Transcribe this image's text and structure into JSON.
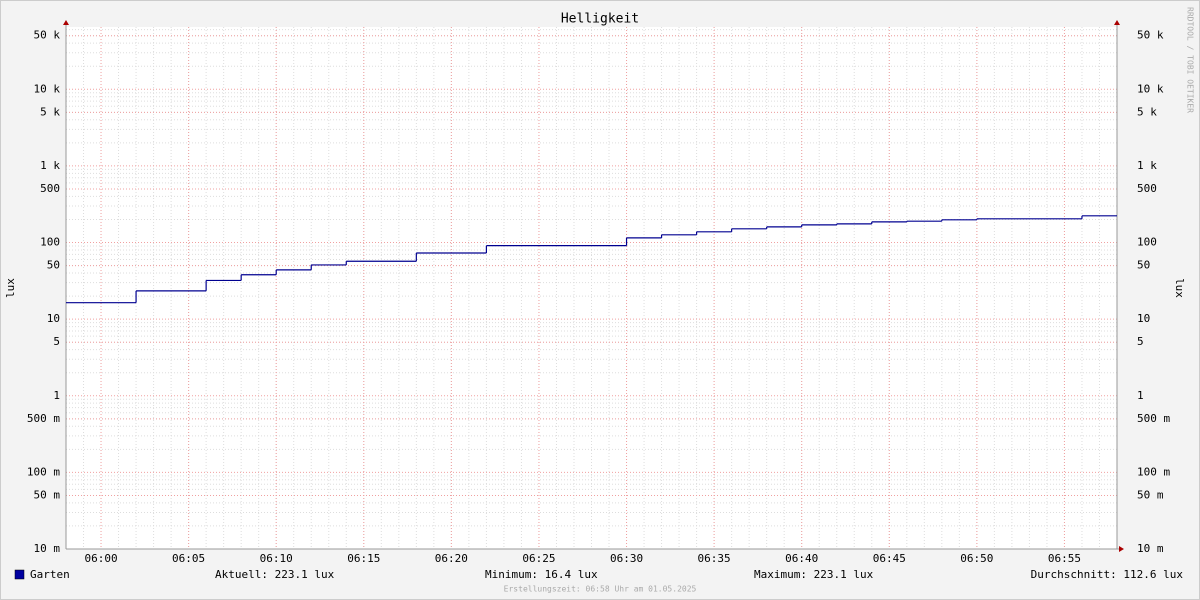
{
  "chart_data": {
    "type": "step",
    "title": "Helligkeit",
    "y_label": "lux",
    "log_scale": true,
    "grid": true,
    "x": [
      "05:58",
      "06:02",
      "06:06",
      "06:08",
      "06:10",
      "06:12",
      "06:14",
      "06:18",
      "06:22",
      "06:30",
      "06:32",
      "06:34",
      "06:36",
      "06:38",
      "06:40",
      "06:42",
      "06:44",
      "06:46",
      "06:48",
      "06:50",
      "06:56"
    ],
    "series": [
      {
        "name": "Garten",
        "color": "#000090",
        "values": [
          16.4,
          23.4,
          32,
          38,
          44,
          51,
          57,
          73,
          91,
          115,
          126,
          138,
          151,
          160,
          170,
          175,
          186,
          190,
          198,
          204,
          223.1
        ]
      }
    ],
    "xlim": [
      "05:58",
      "06:58"
    ],
    "xticks": [
      "06:00",
      "06:05",
      "06:10",
      "06:15",
      "06:20",
      "06:25",
      "06:30",
      "06:35",
      "06:40",
      "06:45",
      "06:50",
      "06:55"
    ],
    "ylim": [
      0.01,
      65000
    ],
    "yticks": [
      {
        "value": 0.01,
        "label": "10 m"
      },
      {
        "value": 0.05,
        "label": "50 m"
      },
      {
        "value": 0.1,
        "label": "100 m"
      },
      {
        "value": 0.5,
        "label": "500 m"
      },
      1,
      5,
      10,
      50,
      100,
      500,
      {
        "value": 1000,
        "label": "1 k"
      },
      {
        "value": 5000,
        "label": "5 k"
      },
      {
        "value": 10000,
        "label": "10 k"
      },
      {
        "value": 50000,
        "label": "50 k"
      }
    ],
    "stats": [
      "Aktuell: 223.1 lux",
      "Minimum:  16.4 lux",
      "Maximum: 223.1 lux",
      "Durchschnitt: 112.6 lux"
    ],
    "footer": "Erstellungszeit: 06:58 Uhr am 01.05.2025",
    "watermark": "RRDTOOL / TOBI OETIKER"
  }
}
